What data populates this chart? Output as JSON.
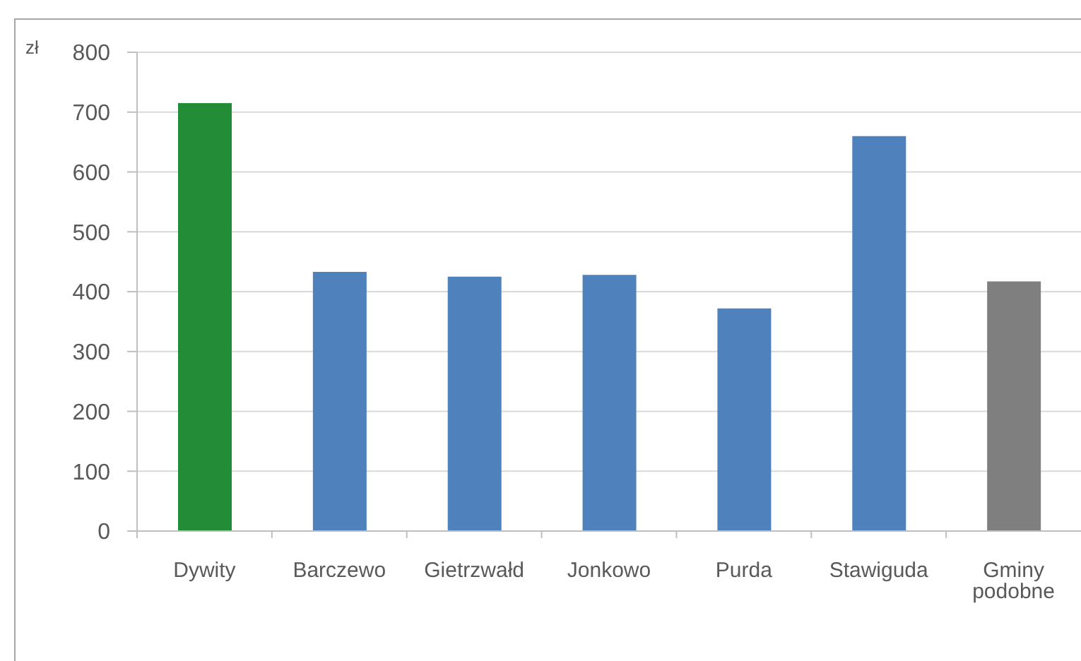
{
  "chart_data": {
    "type": "bar",
    "ylabel": "zł",
    "categories": [
      "Dywity",
      "Barczewo",
      "Gietrzwałd",
      "Jonkowo",
      "Purda",
      "Stawiguda",
      "Gminy podobne"
    ],
    "values": [
      715,
      433,
      425,
      428,
      372,
      660,
      417
    ],
    "colors": [
      "#238c36",
      "#4f81bd",
      "#4f81bd",
      "#4f81bd",
      "#4f81bd",
      "#4f81bd",
      "#7f7f7f"
    ],
    "ylim": [
      0,
      800
    ],
    "yticks": [
      0,
      100,
      200,
      300,
      400,
      500,
      600,
      700,
      800
    ],
    "grid": "y"
  }
}
